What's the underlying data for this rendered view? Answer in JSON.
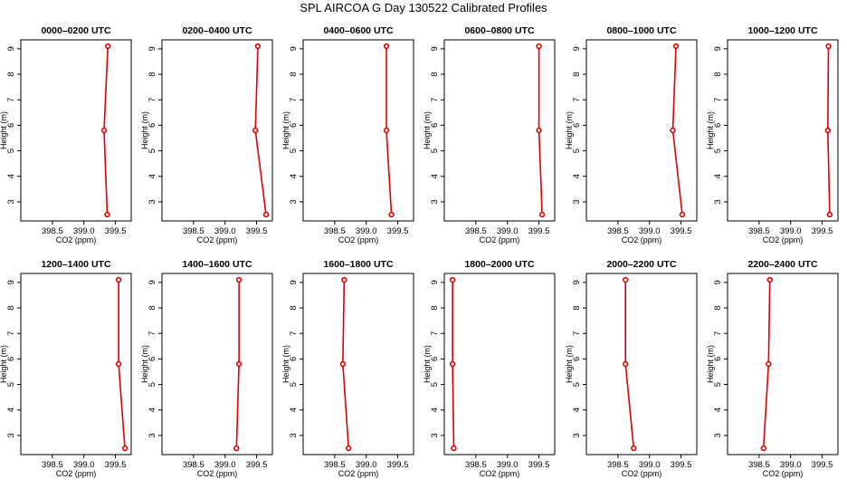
{
  "figure": {
    "title": "SPL AIRCOA G  Day 130522  Calibrated Profiles",
    "series_color": "#dd0000"
  },
  "chart_data": [
    {
      "type": "line",
      "title": "0000–0200 UTC",
      "xlabel": "CO2 (ppm)",
      "ylabel": "Height (m)",
      "xlim": [
        398.0,
        399.75
      ],
      "ylim": [
        2.25,
        9.35
      ],
      "xticks": [
        "398.5",
        "399.0",
        "399.5"
      ],
      "yticks": [
        "3",
        "4",
        "5",
        "6",
        "7",
        "8",
        "9"
      ],
      "x": [
        399.38,
        399.32,
        399.37
      ],
      "y": [
        9.1,
        5.8,
        2.5
      ]
    },
    {
      "type": "line",
      "title": "0200–0400 UTC",
      "xlabel": "CO2 (ppm)",
      "ylabel": "Height (m)",
      "xlim": [
        398.0,
        399.75
      ],
      "ylim": [
        2.25,
        9.35
      ],
      "xticks": [
        "398.5",
        "399.0",
        "399.5"
      ],
      "yticks": [
        "3",
        "4",
        "5",
        "6",
        "7",
        "8",
        "9"
      ],
      "x": [
        399.52,
        399.48,
        399.65
      ],
      "y": [
        9.1,
        5.8,
        2.5
      ]
    },
    {
      "type": "line",
      "title": "0400–0600 UTC",
      "xlabel": "CO2 (ppm)",
      "ylabel": "Height (m)",
      "xlim": [
        398.0,
        399.75
      ],
      "ylim": [
        2.25,
        9.35
      ],
      "xticks": [
        "398.5",
        "399.0",
        "399.5"
      ],
      "yticks": [
        "3",
        "4",
        "5",
        "6",
        "7",
        "8",
        "9"
      ],
      "x": [
        399.32,
        399.32,
        399.4
      ],
      "y": [
        9.1,
        5.8,
        2.5
      ]
    },
    {
      "type": "line",
      "title": "0600–0800 UTC",
      "xlabel": "CO2 (ppm)",
      "ylabel": "Height (m)",
      "xlim": [
        398.0,
        399.75
      ],
      "ylim": [
        2.25,
        9.35
      ],
      "xticks": [
        "398.5",
        "399.0",
        "399.5"
      ],
      "yticks": [
        "3",
        "4",
        "5",
        "6",
        "7",
        "8",
        "9"
      ],
      "x": [
        399.5,
        399.5,
        399.55
      ],
      "y": [
        9.1,
        5.8,
        2.5
      ]
    },
    {
      "type": "line",
      "title": "0800–1000 UTC",
      "xlabel": "CO2 (ppm)",
      "ylabel": "Height (m)",
      "xlim": [
        398.0,
        399.75
      ],
      "ylim": [
        2.25,
        9.35
      ],
      "xticks": [
        "398.5",
        "399.0",
        "399.5"
      ],
      "yticks": [
        "3",
        "4",
        "5",
        "6",
        "7",
        "8",
        "9"
      ],
      "x": [
        399.42,
        399.37,
        399.52
      ],
      "y": [
        9.1,
        5.8,
        2.5
      ]
    },
    {
      "type": "line",
      "title": "1000–1200 UTC",
      "xlabel": "CO2 (ppm)",
      "ylabel": "Height (m)",
      "xlim": [
        398.0,
        399.75
      ],
      "ylim": [
        2.25,
        9.35
      ],
      "xticks": [
        "398.5",
        "399.0",
        "399.5"
      ],
      "yticks": [
        "3",
        "4",
        "5",
        "6",
        "7",
        "8",
        "9"
      ],
      "x": [
        399.6,
        399.59,
        399.62
      ],
      "y": [
        9.1,
        5.8,
        2.5
      ]
    },
    {
      "type": "line",
      "title": "1200–1400 UTC",
      "xlabel": "CO2 (ppm)",
      "ylabel": "Height (m)",
      "xlim": [
        398.0,
        399.75
      ],
      "ylim": [
        2.25,
        9.35
      ],
      "xticks": [
        "398.5",
        "399.0",
        "399.5"
      ],
      "yticks": [
        "3",
        "4",
        "5",
        "6",
        "7",
        "8",
        "9"
      ],
      "x": [
        399.55,
        399.55,
        399.65
      ],
      "y": [
        9.1,
        5.8,
        2.5
      ]
    },
    {
      "type": "line",
      "title": "1400–1600 UTC",
      "xlabel": "CO2 (ppm)",
      "ylabel": "Height (m)",
      "xlim": [
        398.0,
        399.75
      ],
      "ylim": [
        2.25,
        9.35
      ],
      "xticks": [
        "398.5",
        "399.0",
        "399.5"
      ],
      "yticks": [
        "3",
        "4",
        "5",
        "6",
        "7",
        "8",
        "9"
      ],
      "x": [
        399.22,
        399.22,
        399.18
      ],
      "y": [
        9.1,
        5.8,
        2.5
      ]
    },
    {
      "type": "line",
      "title": "1600–1800 UTC",
      "xlabel": "CO2 (ppm)",
      "ylabel": "Height (m)",
      "xlim": [
        398.0,
        399.75
      ],
      "ylim": [
        2.25,
        9.35
      ],
      "xticks": [
        "398.5",
        "399.0",
        "399.5"
      ],
      "yticks": [
        "3",
        "4",
        "5",
        "6",
        "7",
        "8",
        "9"
      ],
      "x": [
        398.65,
        398.63,
        398.72
      ],
      "y": [
        9.1,
        5.8,
        2.5
      ]
    },
    {
      "type": "line",
      "title": "1800–2000 UTC",
      "xlabel": "CO2 (ppm)",
      "ylabel": "Height (m)",
      "xlim": [
        398.0,
        399.75
      ],
      "ylim": [
        2.25,
        9.35
      ],
      "xticks": [
        "398.5",
        "399.0",
        "399.5"
      ],
      "yticks": [
        "3",
        "4",
        "5",
        "6",
        "7",
        "8",
        "9"
      ],
      "x": [
        398.13,
        398.13,
        398.15
      ],
      "y": [
        9.1,
        5.8,
        2.5
      ]
    },
    {
      "type": "line",
      "title": "2000–2200 UTC",
      "xlabel": "CO2 (ppm)",
      "ylabel": "Height (m)",
      "xlim": [
        398.0,
        399.75
      ],
      "ylim": [
        2.25,
        9.35
      ],
      "xticks": [
        "398.5",
        "399.0",
        "399.5"
      ],
      "yticks": [
        "3",
        "4",
        "5",
        "6",
        "7",
        "8",
        "9"
      ],
      "x": [
        398.62,
        398.62,
        398.75
      ],
      "y": [
        9.1,
        5.8,
        2.5
      ]
    },
    {
      "type": "line",
      "title": "2200–2400 UTC",
      "xlabel": "CO2 (ppm)",
      "ylabel": "Height (m)",
      "xlim": [
        398.0,
        399.75
      ],
      "ylim": [
        2.25,
        9.35
      ],
      "xticks": [
        "398.5",
        "399.0",
        "399.5"
      ],
      "yticks": [
        "3",
        "4",
        "5",
        "6",
        "7",
        "8",
        "9"
      ],
      "x": [
        398.67,
        398.65,
        398.57
      ],
      "y": [
        9.1,
        5.8,
        2.5
      ]
    }
  ]
}
